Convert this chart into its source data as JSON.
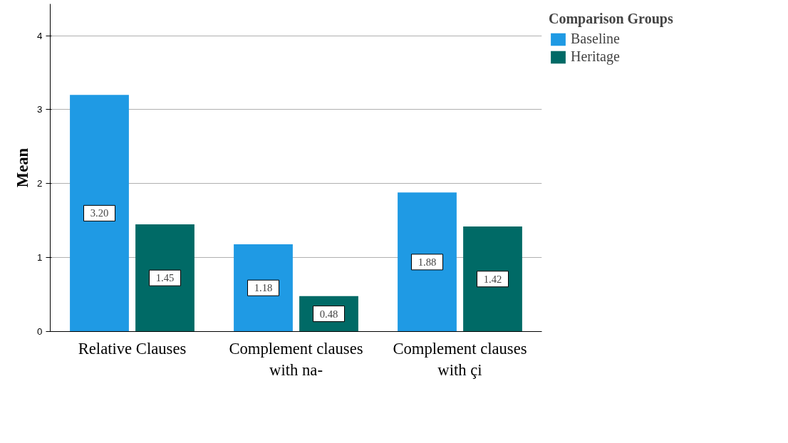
{
  "chart_data": {
    "type": "bar",
    "ylabel": "Mean",
    "legend_title": "Comparison Groups",
    "categories": [
      "Relative Clauses",
      "Complement clauses with na-",
      "Complement clauses with çi"
    ],
    "series": [
      {
        "name": "Baseline",
        "color": "#1f9ae4",
        "values": [
          3.2,
          1.18,
          1.88
        ],
        "value_labels": [
          "3.20",
          "1.18",
          "1.88"
        ]
      },
      {
        "name": "Heritage",
        "color": "#006a66",
        "values": [
          1.45,
          0.48,
          1.42
        ],
        "value_labels": [
          "1.45",
          "0.48",
          "1.42"
        ]
      }
    ],
    "ylim": [
      0,
      4.43
    ],
    "yticks": [
      0,
      1,
      2,
      3,
      4
    ],
    "grid": "y",
    "legend": "top right",
    "data_labels": true
  }
}
